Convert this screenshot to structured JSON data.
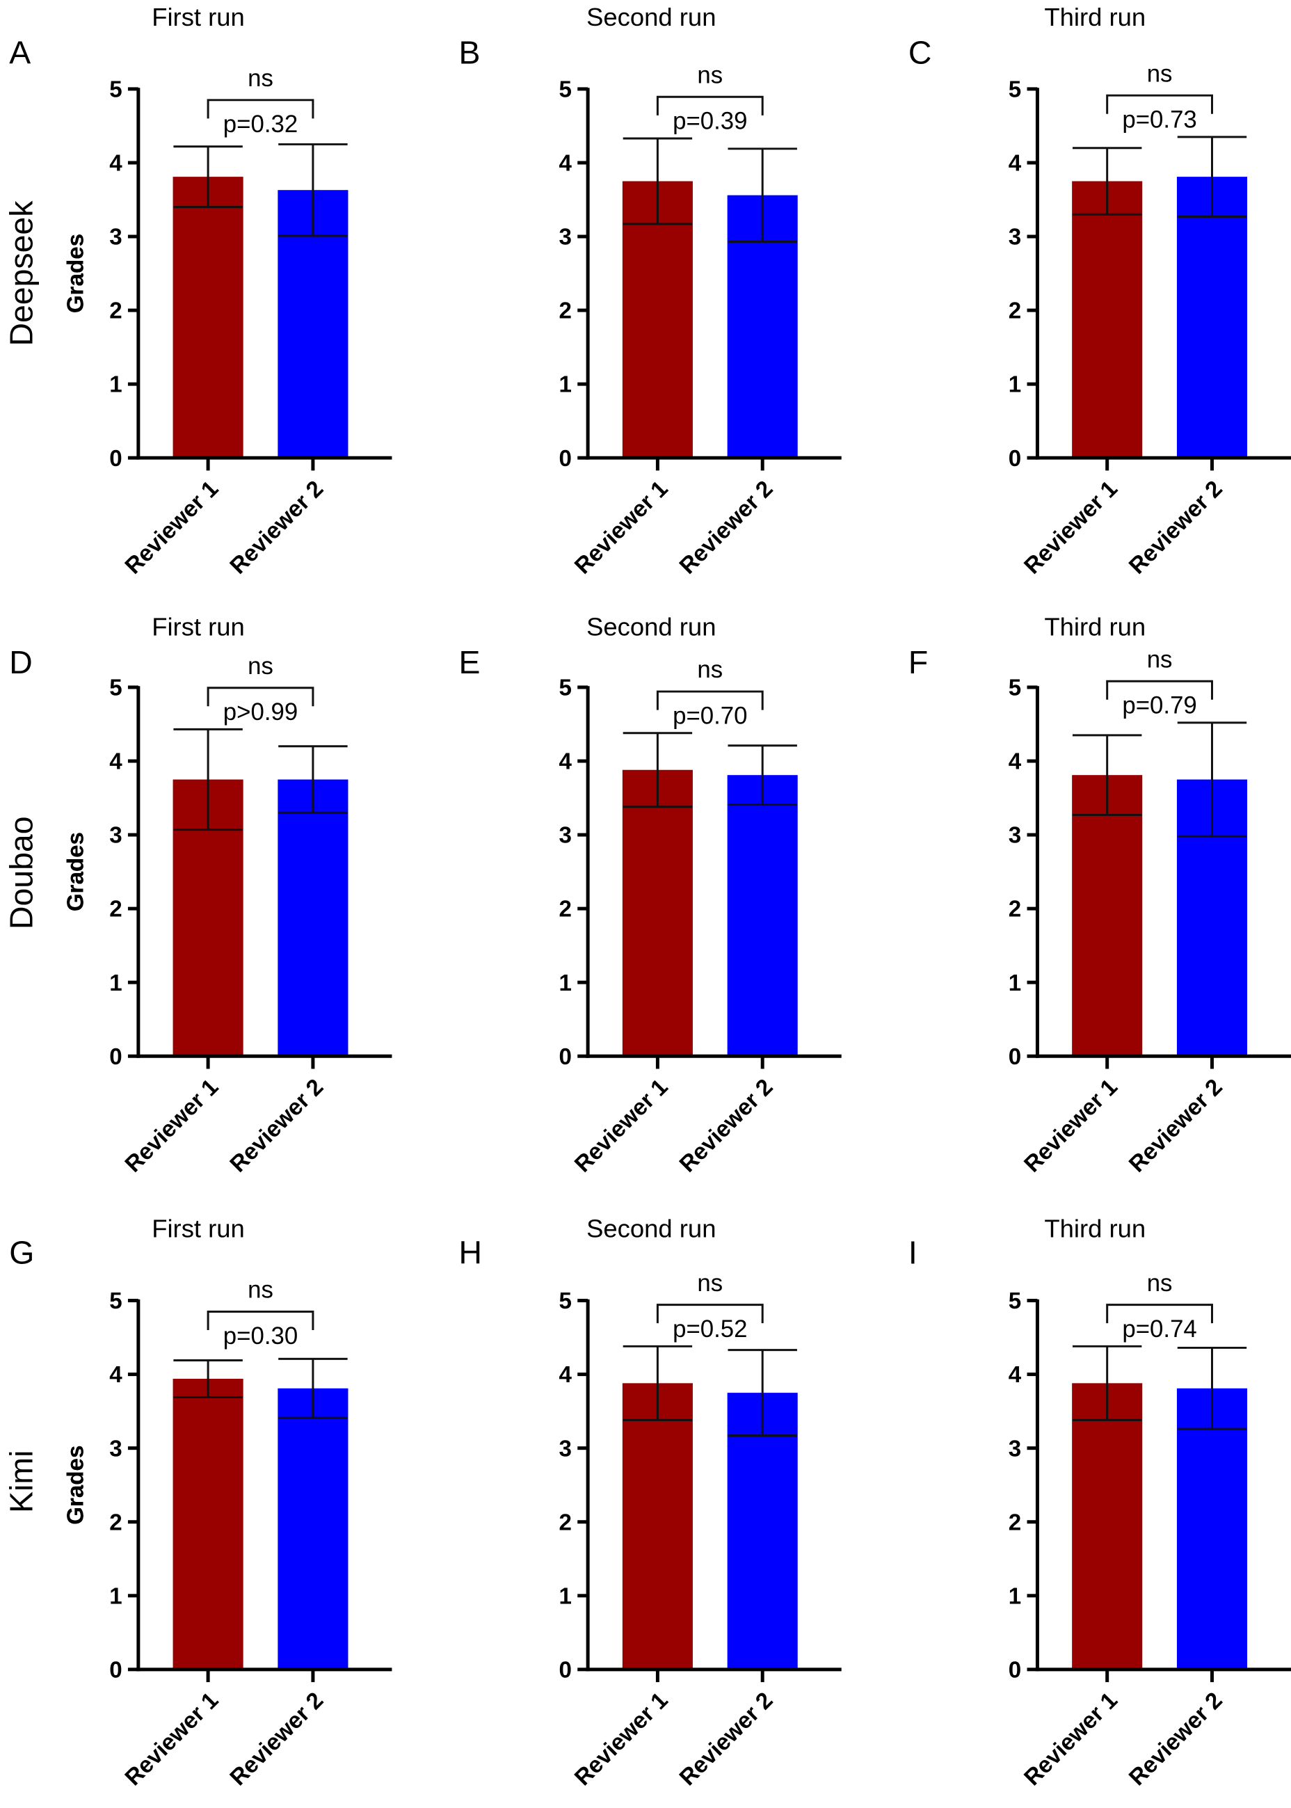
{
  "chart_data": {
    "type": "bar",
    "row_labels": [
      "Deepseek",
      "Doubao",
      "Kimi"
    ],
    "column_titles": [
      "First run",
      "Second run",
      "Third run"
    ],
    "colors": {
      "Reviewer 1": "#990000",
      "Reviewer 2": "#0000FF"
    },
    "panels": [
      {
        "letter": "A",
        "model": "Deepseek",
        "title": "First run",
        "ylabel": "Grades",
        "ylim": [
          0,
          5
        ],
        "yticks": [
          "0",
          "1",
          "2",
          "3",
          "4",
          "5"
        ],
        "categories": [
          "Reviewer 1",
          "Reviewer 2"
        ],
        "values": [
          3.81,
          3.63
        ],
        "sd": [
          0.41,
          0.62
        ],
        "sig": "ns",
        "p": "p=0.32"
      },
      {
        "letter": "B",
        "model": "Deepseek",
        "title": "Second run",
        "ylabel": "Grades",
        "ylim": [
          0,
          5
        ],
        "yticks": [
          "0",
          "1",
          "2",
          "3",
          "4",
          "5"
        ],
        "categories": [
          "Reviewer 1",
          "Reviewer 2"
        ],
        "values": [
          3.75,
          3.56
        ],
        "sd": [
          0.58,
          0.63
        ],
        "sig": "ns",
        "p": "p=0.39"
      },
      {
        "letter": "C",
        "model": "Deepseek",
        "title": "Third run",
        "ylabel": "Grades",
        "ylim": [
          0,
          5
        ],
        "yticks": [
          "0",
          "1",
          "2",
          "3",
          "4",
          "5"
        ],
        "categories": [
          "Reviewer 1",
          "Reviewer 2"
        ],
        "values": [
          3.75,
          3.81
        ],
        "sd": [
          0.45,
          0.54
        ],
        "sig": "ns",
        "p": "p=0.73"
      },
      {
        "letter": "D",
        "model": "Doubao",
        "title": "First run",
        "ylabel": "Grades",
        "ylim": [
          0,
          5
        ],
        "yticks": [
          "0",
          "1",
          "2",
          "3",
          "4",
          "5"
        ],
        "categories": [
          "Reviewer 1",
          "Reviewer 2"
        ],
        "values": [
          3.75,
          3.75
        ],
        "sd": [
          0.68,
          0.45
        ],
        "sig": "ns",
        "p": "p>0.99"
      },
      {
        "letter": "E",
        "model": "Doubao",
        "title": "Second run",
        "ylabel": "Grades",
        "ylim": [
          0,
          5
        ],
        "yticks": [
          "0",
          "1",
          "2",
          "3",
          "4",
          "5"
        ],
        "categories": [
          "Reviewer 1",
          "Reviewer 2"
        ],
        "values": [
          3.88,
          3.81
        ],
        "sd": [
          0.5,
          0.4
        ],
        "sig": "ns",
        "p": "p=0.70"
      },
      {
        "letter": "F",
        "model": "Doubao",
        "title": "Third run",
        "ylabel": "Grades",
        "ylim": [
          0,
          5
        ],
        "yticks": [
          "0",
          "1",
          "2",
          "3",
          "4",
          "5"
        ],
        "categories": [
          "Reviewer 1",
          "Reviewer 2"
        ],
        "values": [
          3.81,
          3.75
        ],
        "sd": [
          0.54,
          0.77
        ],
        "sig": "ns",
        "p": "p=0.79"
      },
      {
        "letter": "G",
        "model": "Kimi",
        "title": "First run",
        "ylabel": "Grades",
        "ylim": [
          0,
          5
        ],
        "yticks": [
          "0",
          "1",
          "2",
          "3",
          "4",
          "5"
        ],
        "categories": [
          "Reviewer 1",
          "Reviewer 2"
        ],
        "values": [
          3.94,
          3.81
        ],
        "sd": [
          0.25,
          0.4
        ],
        "sig": "ns",
        "p": "p=0.30"
      },
      {
        "letter": "H",
        "model": "Kimi",
        "title": "Second run",
        "ylabel": "Grades",
        "ylim": [
          0,
          5
        ],
        "yticks": [
          "0",
          "1",
          "2",
          "3",
          "4",
          "5"
        ],
        "categories": [
          "Reviewer 1",
          "Reviewer 2"
        ],
        "values": [
          3.88,
          3.75
        ],
        "sd": [
          0.5,
          0.58
        ],
        "sig": "ns",
        "p": "p=0.52"
      },
      {
        "letter": "I",
        "model": "Kimi",
        "title": "Third run",
        "ylabel": "Grades",
        "ylim": [
          0,
          5
        ],
        "yticks": [
          "0",
          "1",
          "2",
          "3",
          "4",
          "5"
        ],
        "categories": [
          "Reviewer 1",
          "Reviewer 2"
        ],
        "values": [
          3.88,
          3.81
        ],
        "sd": [
          0.5,
          0.55
        ],
        "sig": "ns",
        "p": "p=0.74"
      }
    ]
  }
}
